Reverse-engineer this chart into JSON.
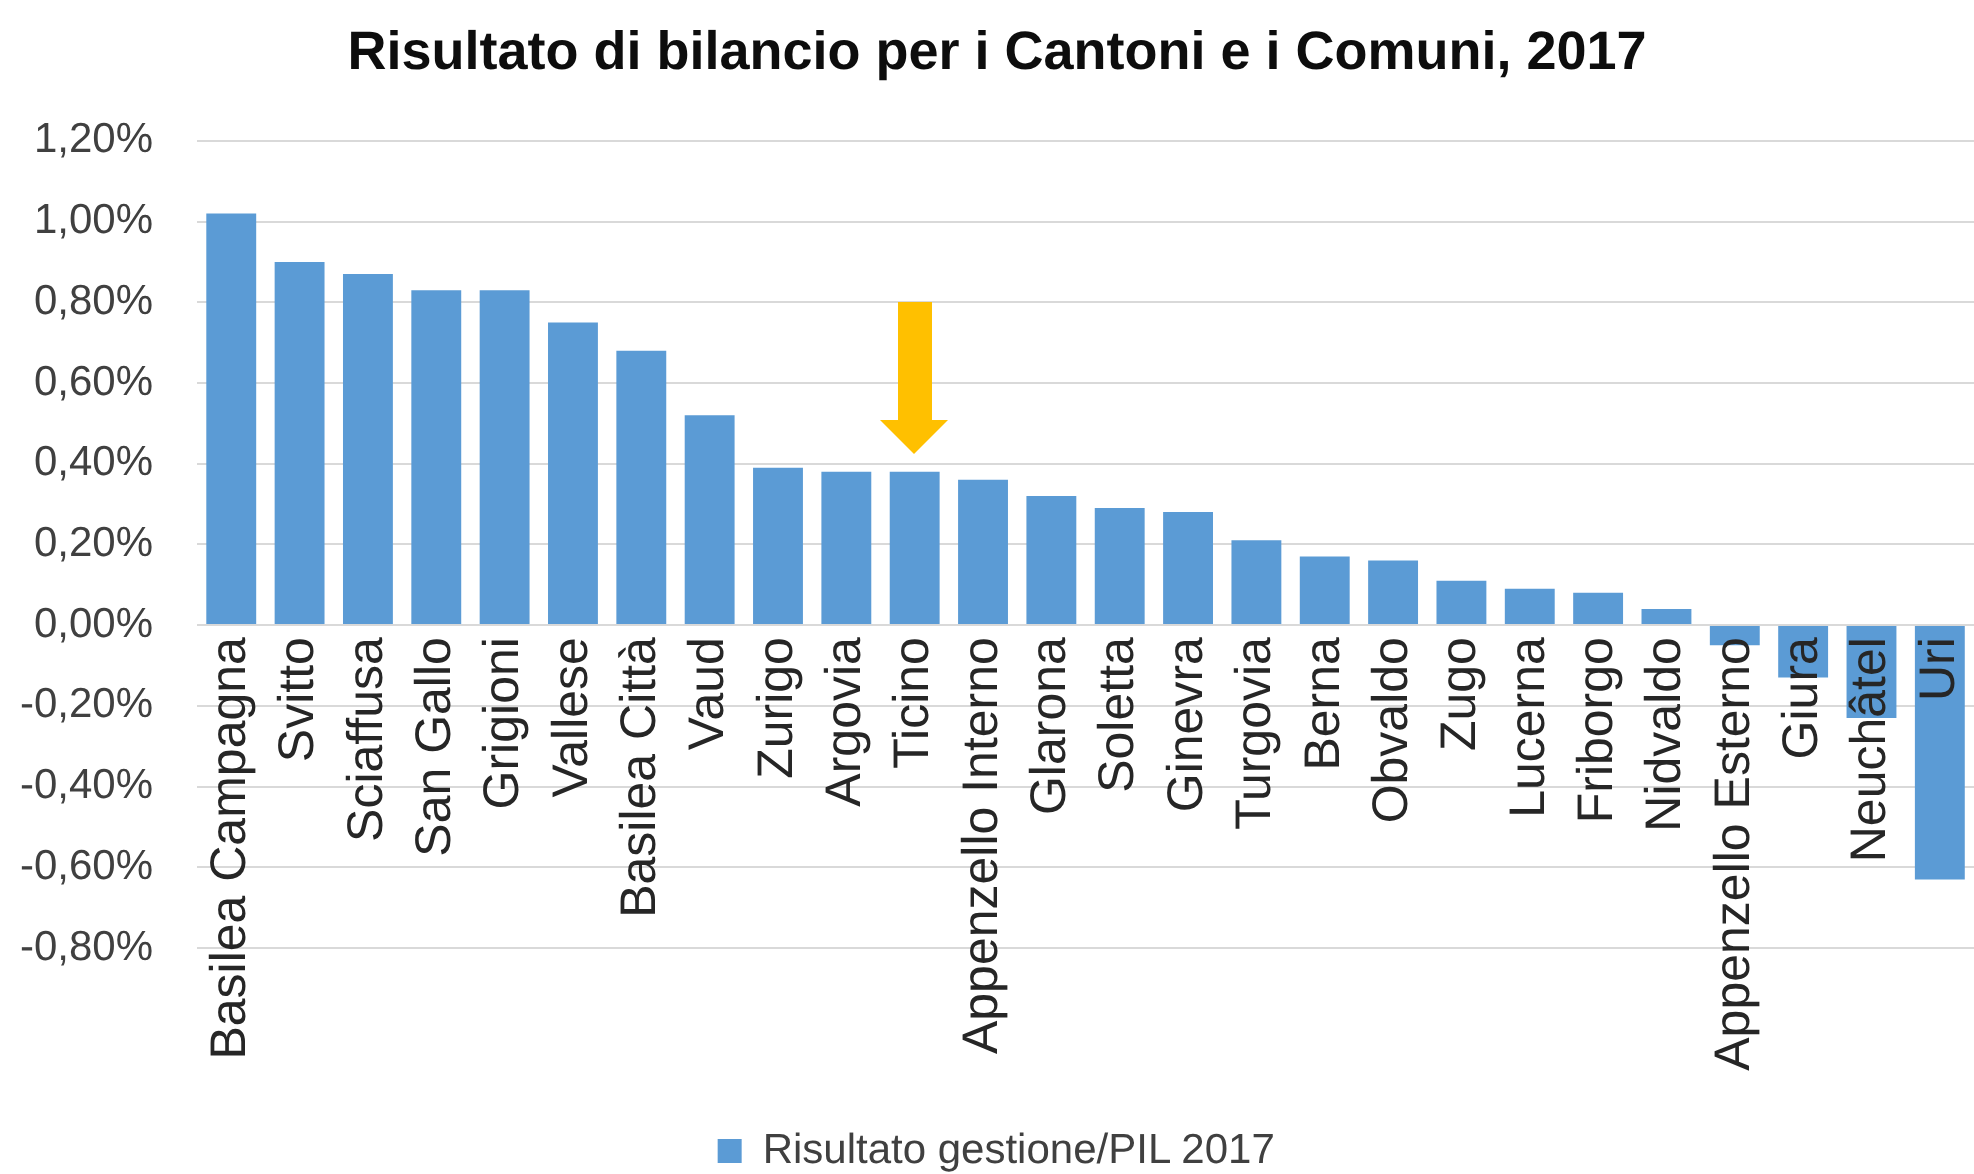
{
  "chart_data": {
    "type": "bar",
    "title": "Risultato di bilancio per i Cantoni e i Comuni, 2017",
    "categories": [
      "Basilea Campagna",
      "Svitto",
      "Sciaffusa",
      "San Gallo",
      "Grigioni",
      "Vallese",
      "Basilea Città",
      "Vaud",
      "Zurigo",
      "Argovia",
      "Ticino",
      "Appenzello Interno",
      "Glarona",
      "Soletta",
      "Ginevra",
      "Turgovia",
      "Berna",
      "Obvaldo",
      "Zugo",
      "Lucerna",
      "Friborgo",
      "Nidvaldo",
      "Appenzello Esterno",
      "Giura",
      "Neuchâtel",
      "Uri"
    ],
    "series": [
      {
        "name": "Risultato gestione/PIL 2017",
        "color": "#5b9bd5",
        "values": [
          1.02,
          0.9,
          0.87,
          0.83,
          0.83,
          0.75,
          0.68,
          0.52,
          0.39,
          0.38,
          0.38,
          0.36,
          0.32,
          0.29,
          0.28,
          0.21,
          0.17,
          0.16,
          0.11,
          0.09,
          0.08,
          0.04,
          -0.05,
          -0.13,
          -0.23,
          -0.63
        ]
      }
    ],
    "ylim": [
      -0.8,
      1.2
    ],
    "yticks": [
      {
        "value": -0.8,
        "label": "-0,80%"
      },
      {
        "value": -0.6,
        "label": "-0,60%"
      },
      {
        "value": -0.4,
        "label": "-0,40%"
      },
      {
        "value": -0.2,
        "label": "-0,20%"
      },
      {
        "value": 0,
        "label": "0,00%"
      },
      {
        "value": 0.2,
        "label": "0,20%"
      },
      {
        "value": 0.4,
        "label": "0,40%"
      },
      {
        "value": 0.6,
        "label": "0,60%"
      },
      {
        "value": 0.8,
        "label": "0,80%"
      },
      {
        "value": 1,
        "label": "1,00%"
      },
      {
        "value": 1.2,
        "label": "1,20%"
      }
    ],
    "grid": "y",
    "legend": "bottom"
  }
}
